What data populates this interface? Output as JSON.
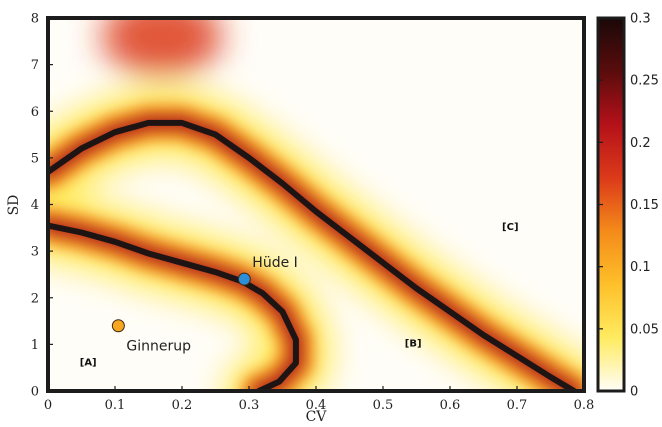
{
  "chart_data": {
    "type": "heatmap",
    "xlabel": "CV",
    "ylabel": "SD",
    "xlim": [
      0,
      0.8
    ],
    "ylim": [
      0,
      8
    ],
    "x_ticks": [
      "0",
      "0.1",
      "0.2",
      "0.3",
      "0.4",
      "0.5",
      "0.6",
      "0.7",
      "0.8"
    ],
    "y_ticks": [
      "0",
      "1",
      "2",
      "3",
      "4",
      "5",
      "6",
      "7",
      "8"
    ],
    "colorbar": {
      "min": 0,
      "max": 0.3,
      "ticks": [
        "0",
        "0.05",
        "0.1",
        "0.15",
        "0.2",
        "0.25",
        "0.3"
      ],
      "colors": [
        "#fffdf8",
        "#ffeb60",
        "#fec02a",
        "#f48a1a",
        "#dc3a1a",
        "#b5111a",
        "#5a0c0c",
        "#1a0808"
      ]
    },
    "boundary_curves": [
      {
        "name": "",
        "points": [
          [
            0,
            4.7
          ],
          [
            0.05,
            5.2
          ],
          [
            0.1,
            5.55
          ],
          [
            0.15,
            5.75
          ],
          [
            0.2,
            5.75
          ],
          [
            0.25,
            5.5
          ],
          [
            0.3,
            5.0
          ],
          [
            0.35,
            4.45
          ],
          [
            0.4,
            3.85
          ],
          [
            0.45,
            3.3
          ],
          [
            0.5,
            2.75
          ],
          [
            0.55,
            2.2
          ],
          [
            0.6,
            1.7
          ],
          [
            0.65,
            1.2
          ],
          [
            0.7,
            0.75
          ],
          [
            0.75,
            0.3
          ],
          [
            0.785,
            0
          ]
        ]
      },
      {
        "name": "",
        "points": [
          [
            0,
            3.55
          ],
          [
            0.05,
            3.4
          ],
          [
            0.1,
            3.2
          ],
          [
            0.15,
            2.95
          ],
          [
            0.2,
            2.75
          ],
          [
            0.25,
            2.55
          ],
          [
            0.29,
            2.35
          ],
          [
            0.32,
            2.1
          ],
          [
            0.35,
            1.7
          ],
          [
            0.37,
            1.1
          ],
          [
            0.37,
            0.6
          ],
          [
            0.345,
            0.2
          ],
          [
            0.315,
            0
          ]
        ]
      }
    ],
    "points": [
      {
        "label": "Ginnerup",
        "x": 0.105,
        "y": 1.4,
        "color": "#f7a622"
      },
      {
        "label": "Hüde I",
        "x": 0.293,
        "y": 2.4,
        "color": "#2a8fd8"
      }
    ],
    "region_labels": [
      {
        "text": "[A]",
        "x": 0.06,
        "y": 0.55
      },
      {
        "text": "[B]",
        "x": 0.545,
        "y": 0.95
      },
      {
        "text": "[C]",
        "x": 0.69,
        "y": 3.45
      }
    ]
  }
}
